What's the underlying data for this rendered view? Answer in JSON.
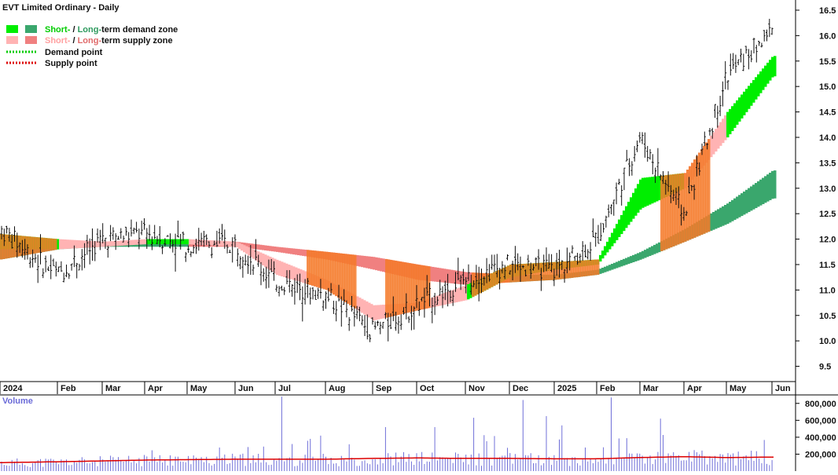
{
  "chart_title": "EVT Limited Ordinary - Daily",
  "legend": {
    "demand_zone": {
      "short_word": "Short-",
      "slash": " / ",
      "long_word": "Long-",
      "rest": "term demand zone",
      "short_color": "#00ee00",
      "long_color": "#3aa76d"
    },
    "supply_zone": {
      "short_word": "Short-",
      "slash": " / ",
      "long_word": "Long-",
      "rest": "term supply zone",
      "short_color": "#ffb3b3",
      "long_color": "#f08080"
    },
    "demand_point": "Demand point",
    "supply_point": "Supply point",
    "demand_point_color": "#00cc00",
    "supply_point_color": "#dd0000"
  },
  "volume_label": "Volume",
  "colors": {
    "short_demand": "#00ee00",
    "long_demand": "#3aa76d",
    "short_supply": "#ffb3b3",
    "long_supply": "#f08080",
    "orange_zone": "#f47a2a",
    "price_bars": "#111111",
    "volume_bars": "#7070d8",
    "volume_average": "#dd0000"
  },
  "chart_data": {
    "type": "line",
    "title": "EVT Limited Ordinary - Daily",
    "x_ticks": [
      "2024",
      "Feb",
      "Mar",
      "Apr",
      "May",
      "Jun",
      "Jul",
      "Aug",
      "Sep",
      "Oct",
      "Nov",
      "Dec",
      "2025",
      "Feb",
      "Mar",
      "Apr",
      "May",
      "Jun"
    ],
    "price_axis": {
      "ticks": [
        "16.5",
        "16.0",
        "15.5",
        "15.0",
        "14.5",
        "14.0",
        "13.5",
        "13.0",
        "12.5",
        "12.0",
        "11.5",
        "11.0",
        "10.5",
        "10.0",
        "9.5"
      ],
      "range": [
        9.2,
        16.7
      ]
    },
    "volume_axis": {
      "ticks": [
        "800,000",
        "600,000",
        "400,000",
        "200,000"
      ],
      "range": [
        0,
        900000
      ]
    },
    "price_close_monthly": [
      {
        "month": "2024",
        "value": 12.2
      },
      {
        "month": "Feb",
        "value": 11.3
      },
      {
        "month": "Mar",
        "value": 12.0
      },
      {
        "month": "Apr",
        "value": 12.1
      },
      {
        "month": "May",
        "value": 11.9
      },
      {
        "month": "Jun",
        "value": 11.9
      },
      {
        "month": "Jul",
        "value": 11.2
      },
      {
        "month": "Aug",
        "value": 10.9
      },
      {
        "month": "Sep",
        "value": 10.2
      },
      {
        "month": "Oct",
        "value": 10.7
      },
      {
        "month": "Nov",
        "value": 11.2
      },
      {
        "month": "Dec",
        "value": 11.5
      },
      {
        "month": "2025",
        "value": 11.4
      },
      {
        "month": "Feb",
        "value": 12.0
      },
      {
        "month": "Mar",
        "value": 14.0
      },
      {
        "month": "Apr",
        "value": 12.5
      },
      {
        "month": "May",
        "value": 15.2
      },
      {
        "month": "Jun",
        "value": 16.1
      }
    ],
    "short_term_zone_monthly": [
      {
        "month": "2024",
        "low": 11.8,
        "high": 12.1,
        "kind": "demand"
      },
      {
        "month": "Feb",
        "low": 11.8,
        "high": 12.0,
        "kind": "supply"
      },
      {
        "month": "Mar",
        "low": 11.85,
        "high": 11.95,
        "kind": "supply"
      },
      {
        "month": "Apr",
        "low": 11.9,
        "high": 12.0,
        "kind": "demand"
      },
      {
        "month": "May",
        "low": 11.9,
        "high": 12.0,
        "kind": "supply"
      },
      {
        "month": "Jun",
        "low": 11.85,
        "high": 11.95,
        "kind": "supply"
      },
      {
        "month": "Jul",
        "low": 11.3,
        "high": 11.6,
        "kind": "supply"
      },
      {
        "month": "Aug",
        "low": 11.0,
        "high": 11.2,
        "kind": "supply"
      },
      {
        "month": "Sep",
        "low": 10.4,
        "high": 10.7,
        "kind": "supply"
      },
      {
        "month": "Oct",
        "low": 10.6,
        "high": 10.75,
        "kind": "supply"
      },
      {
        "month": "Nov",
        "low": 10.8,
        "high": 11.1,
        "kind": "demand"
      },
      {
        "month": "Dec",
        "low": 11.25,
        "high": 11.5,
        "kind": "demand"
      },
      {
        "month": "2025",
        "low": 11.4,
        "high": 11.55,
        "kind": "demand"
      },
      {
        "month": "Feb",
        "low": 11.5,
        "high": 11.6,
        "kind": "demand"
      },
      {
        "month": "Mar",
        "low": 12.6,
        "high": 13.2,
        "kind": "demand"
      },
      {
        "month": "Apr",
        "low": 13.0,
        "high": 13.3,
        "kind": "supply"
      },
      {
        "month": "May",
        "low": 14.0,
        "high": 14.5,
        "kind": "demand"
      },
      {
        "month": "Jun",
        "low": 15.2,
        "high": 15.6,
        "kind": "demand"
      }
    ],
    "long_term_zone_monthly": [
      {
        "month": "2024",
        "low": 11.6,
        "high": 11.8,
        "kind": "demand"
      },
      {
        "month": "Feb",
        "low": 11.8,
        "high": 11.9,
        "kind": "demand"
      },
      {
        "month": "Mar",
        "low": 11.85,
        "high": 11.95,
        "kind": "demand"
      },
      {
        "month": "Apr",
        "low": 11.85,
        "high": 11.95,
        "kind": "demand"
      },
      {
        "month": "May",
        "low": 11.85,
        "high": 11.95,
        "kind": "supply"
      },
      {
        "month": "Jun",
        "low": 11.85,
        "high": 11.95,
        "kind": "supply"
      },
      {
        "month": "Jul",
        "low": 11.75,
        "high": 11.85,
        "kind": "supply"
      },
      {
        "month": "Aug",
        "low": 11.6,
        "high": 11.75,
        "kind": "supply"
      },
      {
        "month": "Sep",
        "low": 11.4,
        "high": 11.65,
        "kind": "supply"
      },
      {
        "month": "Oct",
        "low": 11.2,
        "high": 11.5,
        "kind": "supply"
      },
      {
        "month": "Nov",
        "low": 11.1,
        "high": 11.35,
        "kind": "supply"
      },
      {
        "month": "Dec",
        "low": 11.15,
        "high": 11.3,
        "kind": "demand"
      },
      {
        "month": "2025",
        "low": 11.2,
        "high": 11.3,
        "kind": "demand"
      },
      {
        "month": "Feb",
        "low": 11.3,
        "high": 11.4,
        "kind": "demand"
      },
      {
        "month": "Mar",
        "low": 11.6,
        "high": 11.75,
        "kind": "demand"
      },
      {
        "month": "Apr",
        "low": 11.95,
        "high": 12.2,
        "kind": "demand"
      },
      {
        "month": "May",
        "low": 12.3,
        "high": 12.7,
        "kind": "demand"
      },
      {
        "month": "Jun",
        "low": 12.8,
        "high": 13.35,
        "kind": "demand"
      }
    ],
    "volume_average_monthly": [
      {
        "month": "2024",
        "value": 100000
      },
      {
        "month": "Feb",
        "value": 110000
      },
      {
        "month": "Mar",
        "value": 120000
      },
      {
        "month": "Apr",
        "value": 130000
      },
      {
        "month": "May",
        "value": 135000
      },
      {
        "month": "Jun",
        "value": 140000
      },
      {
        "month": "Jul",
        "value": 140000
      },
      {
        "month": "Aug",
        "value": 140000
      },
      {
        "month": "Sep",
        "value": 150000
      },
      {
        "month": "Oct",
        "value": 155000
      },
      {
        "month": "Nov",
        "value": 150000
      },
      {
        "month": "Dec",
        "value": 150000
      },
      {
        "month": "2025",
        "value": 145000
      },
      {
        "month": "Feb",
        "value": 145000
      },
      {
        "month": "Mar",
        "value": 160000
      },
      {
        "month": "Apr",
        "value": 170000
      },
      {
        "month": "May",
        "value": 160000
      },
      {
        "month": "Jun",
        "value": 165000
      }
    ],
    "volume_spikes": [
      {
        "month": "Jul",
        "value": 880000
      },
      {
        "month": "Sep",
        "value": 520000
      },
      {
        "month": "Oct",
        "value": 520000
      },
      {
        "month": "Nov",
        "value": 630000
      },
      {
        "month": "Dec",
        "value": 840000
      },
      {
        "month": "Dec",
        "value": 650000
      },
      {
        "month": "2025",
        "value": 540000
      },
      {
        "month": "Feb",
        "value": 870000
      },
      {
        "month": "Mar",
        "value": 620000
      }
    ]
  }
}
